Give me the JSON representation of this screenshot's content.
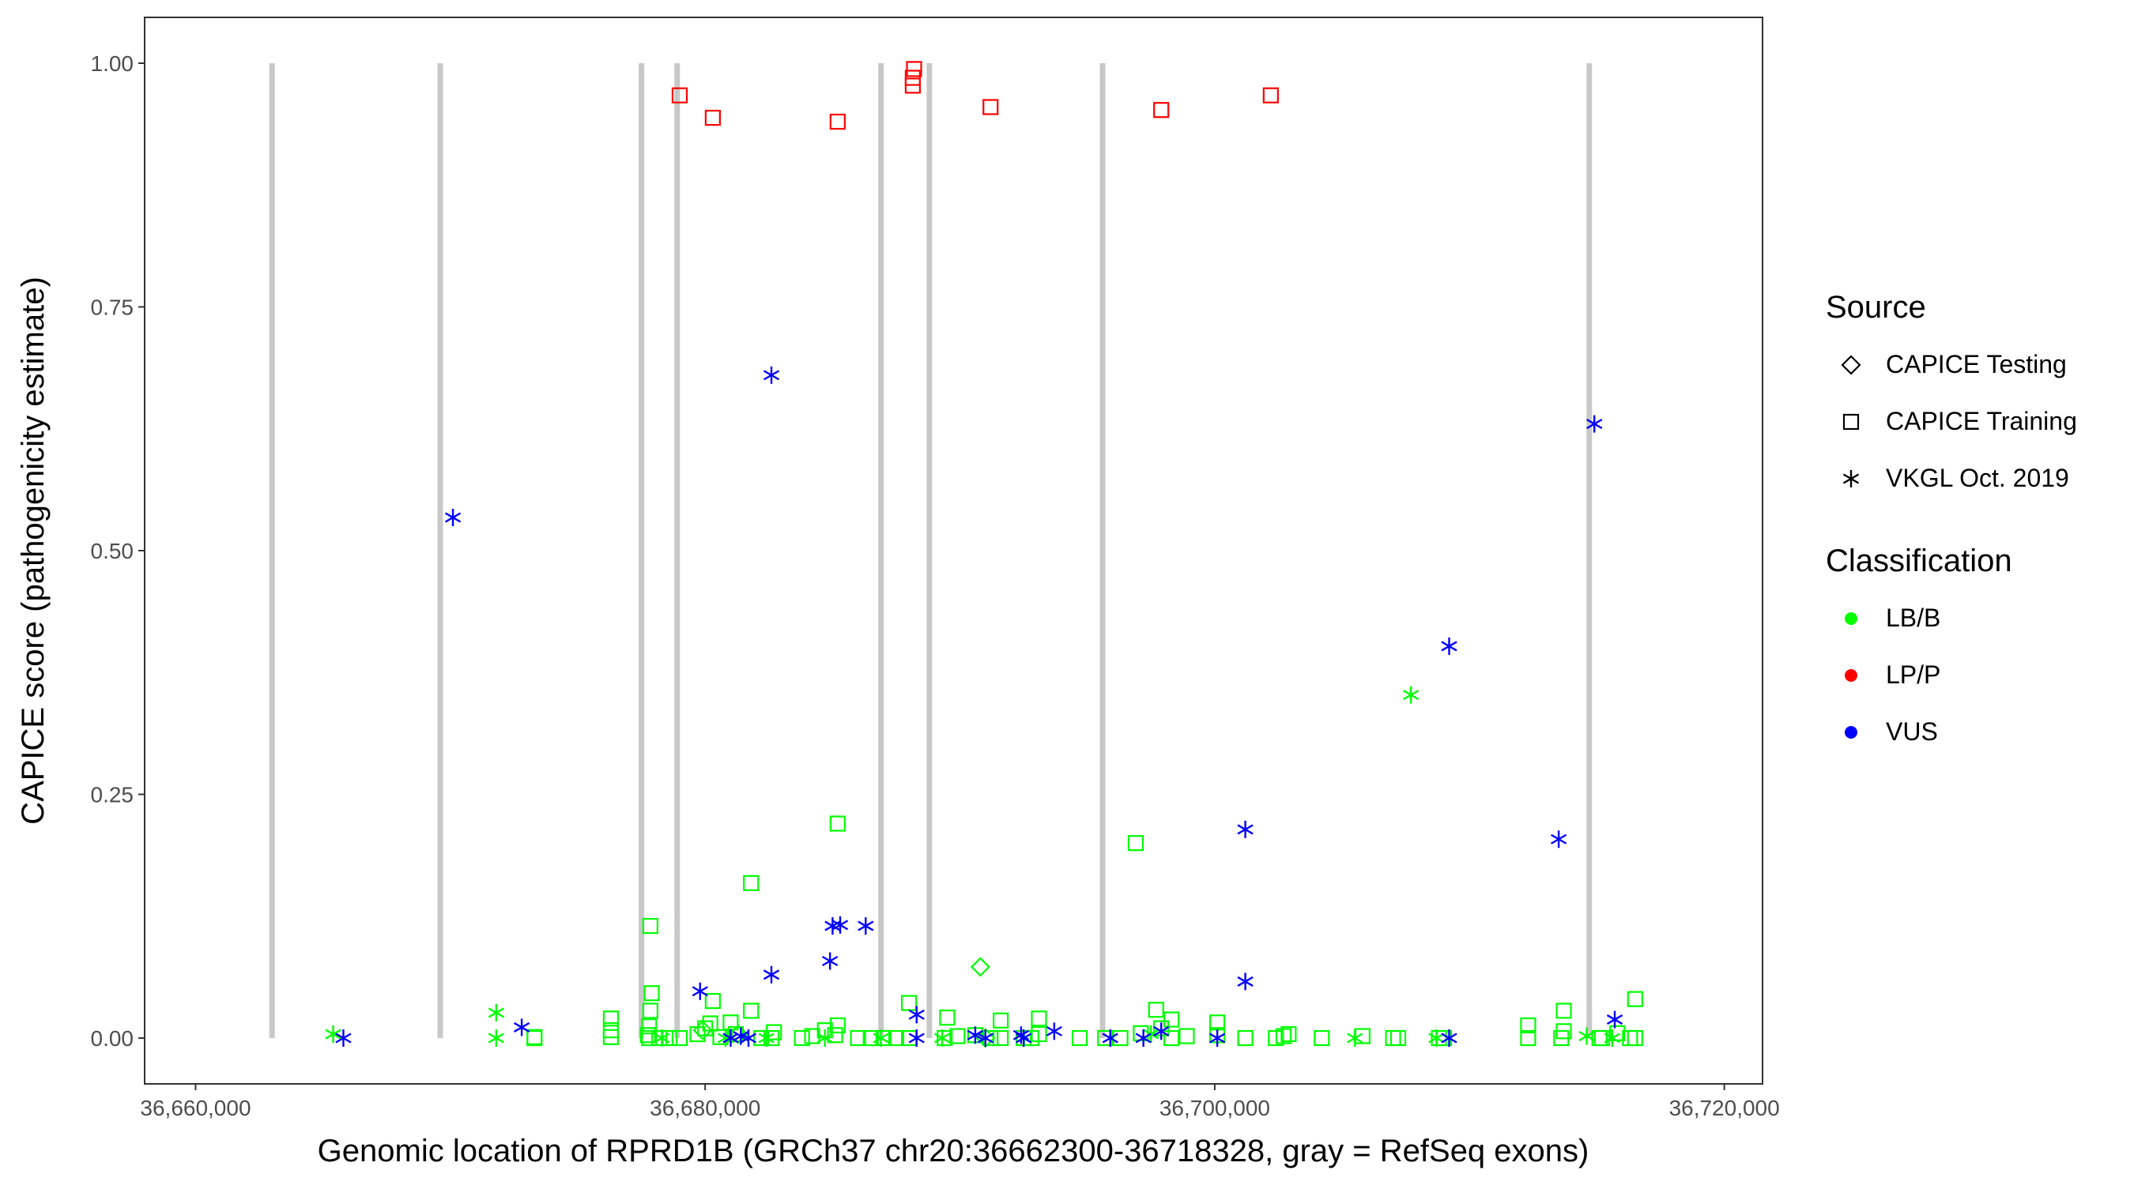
{
  "chart_data": {
    "type": "scatter",
    "title": "",
    "xlabel": "Genomic location of RPRD1B (GRCh37 chr20:36662300-36718328, gray = RefSeq exons)",
    "ylabel": "CAPICE score (pathogenicity estimate)",
    "xlim": [
      36658000,
      36721500
    ],
    "ylim": [
      -0.047,
      1.047
    ],
    "x_ticks": [
      36660000,
      36680000,
      36700000,
      36720000
    ],
    "x_tick_labels": [
      "36,660,000",
      "36,680,000",
      "36,700,000",
      "36,720,000"
    ],
    "y_ticks": [
      0,
      0.25,
      0.5,
      0.75,
      1
    ],
    "y_tick_labels": [
      "0.00",
      "0.25",
      "0.50",
      "0.75",
      "1.00"
    ],
    "grid": false,
    "exons": [
      36663000,
      36669600,
      36677500,
      36678900,
      36686900,
      36688800,
      36695600,
      36714700
    ],
    "legend_placement": "right",
    "legends": [
      {
        "title": "Source",
        "items": [
          {
            "label": "CAPICE Testing",
            "shape": "diamond"
          },
          {
            "label": "CAPICE Training",
            "shape": "square"
          },
          {
            "label": "VKGL Oct. 2019",
            "shape": "asterisk"
          }
        ]
      },
      {
        "title": "Classification",
        "items": [
          {
            "label": "LB/B",
            "color": "#00FF00"
          },
          {
            "label": "LP/P",
            "color": "#FF0000"
          },
          {
            "label": "VUS",
            "color": "#0000FF"
          }
        ]
      }
    ],
    "colors": {
      "LB/B": "#00FF00",
      "LP/P": "#FF0000",
      "VUS": "#0000FF",
      "exon": "#c8c8c8"
    },
    "series": [
      {
        "name": "CAPICE Training",
        "classification": "LP/P",
        "shape": "square",
        "points": [
          [
            36679000,
            0.967
          ],
          [
            36680300,
            0.944
          ],
          [
            36685200,
            0.94
          ],
          [
            36688200,
            0.994
          ],
          [
            36688150,
            0.985
          ],
          [
            36688150,
            0.977
          ],
          [
            36691200,
            0.955
          ],
          [
            36697900,
            0.952
          ],
          [
            36702200,
            0.967
          ]
        ]
      },
      {
        "name": "CAPICE Training",
        "classification": "LB/B",
        "shape": "square",
        "points": [
          [
            36673300,
            0.0
          ],
          [
            36673300,
            0.001
          ],
          [
            36676300,
            0.02
          ],
          [
            36676300,
            0.008
          ],
          [
            36676300,
            0.001
          ],
          [
            36677850,
            0.115
          ],
          [
            36677900,
            0.046
          ],
          [
            36677850,
            0.028
          ],
          [
            36677800,
            0.012
          ],
          [
            36677750,
            0.003
          ],
          [
            36677800,
            0.0
          ],
          [
            36678200,
            0.0
          ],
          [
            36678600,
            0.0
          ],
          [
            36679000,
            0.0
          ],
          [
            36679700,
            0.004
          ],
          [
            36680000,
            0.01
          ],
          [
            36680200,
            0.015
          ],
          [
            36680300,
            0.038
          ],
          [
            36680600,
            0.001
          ],
          [
            36681000,
            0.016
          ],
          [
            36681200,
            0.004
          ],
          [
            36681800,
            0.028
          ],
          [
            36681800,
            0.159
          ],
          [
            36682200,
            0.0
          ],
          [
            36682600,
            0.0
          ],
          [
            36682700,
            0.006
          ],
          [
            36683800,
            0.0
          ],
          [
            36684200,
            0.002
          ],
          [
            36684700,
            0.008
          ],
          [
            36685200,
            0.22
          ],
          [
            36685200,
            0.013
          ],
          [
            36685100,
            0.003
          ],
          [
            36686000,
            0.0
          ],
          [
            36686500,
            0.0
          ],
          [
            36687000,
            0.0
          ],
          [
            36687500,
            0.0
          ],
          [
            36688000,
            0.0
          ],
          [
            36688000,
            0.036
          ],
          [
            36689400,
            0.0
          ],
          [
            36689500,
            0.021
          ],
          [
            36689900,
            0.002
          ],
          [
            36690600,
            0.003
          ],
          [
            36691200,
            0.0
          ],
          [
            36691600,
            0.0
          ],
          [
            36691600,
            0.018
          ],
          [
            36692500,
            0.0
          ],
          [
            36692800,
            0.0
          ],
          [
            36693100,
            0.02
          ],
          [
            36693100,
            0.004
          ],
          [
            36694700,
            0.0
          ],
          [
            36695700,
            0.0
          ],
          [
            36696300,
            0.0
          ],
          [
            36696900,
            0.2
          ],
          [
            36697100,
            0.005
          ],
          [
            36697700,
            0.029
          ],
          [
            36697900,
            0.01
          ],
          [
            36698300,
            0.019
          ],
          [
            36698300,
            0.0
          ],
          [
            36698900,
            0.002
          ],
          [
            36700100,
            0.016
          ],
          [
            36700100,
            0.003
          ],
          [
            36701200,
            0.0
          ],
          [
            36702400,
            0.0
          ],
          [
            36702700,
            0.002
          ],
          [
            36702900,
            0.004
          ],
          [
            36704200,
            0.0
          ],
          [
            36705800,
            0.002
          ],
          [
            36707000,
            0.0
          ],
          [
            36707200,
            0.0
          ],
          [
            36708800,
            0.0
          ],
          [
            36709000,
            0.0
          ],
          [
            36712300,
            0.013
          ],
          [
            36712300,
            0.0
          ],
          [
            36713700,
            0.028
          ],
          [
            36713700,
            0.007
          ],
          [
            36713600,
            0.0
          ],
          [
            36715100,
            0.0
          ],
          [
            36715200,
            0.0
          ],
          [
            36715800,
            0.005
          ],
          [
            36716500,
            0.04
          ],
          [
            36716300,
            0.0
          ],
          [
            36716500,
            0.0
          ]
        ]
      },
      {
        "name": "CAPICE Testing",
        "classification": "LB/B",
        "shape": "diamond",
        "points": [
          [
            36679900,
            0.008
          ],
          [
            36681300,
            0.004
          ],
          [
            36690800,
            0.073
          ],
          [
            36691000,
            0.0
          ]
        ]
      },
      {
        "name": "VKGL Oct. 2019",
        "classification": "LB/B",
        "shape": "asterisk",
        "points": [
          [
            36665400,
            0.004
          ],
          [
            36671800,
            0.026
          ],
          [
            36671800,
            0.0
          ],
          [
            36678300,
            0.0
          ],
          [
            36680800,
            0.0
          ],
          [
            36682400,
            0.0
          ],
          [
            36684700,
            0.0
          ],
          [
            36686900,
            0.0
          ],
          [
            36689300,
            0.0
          ],
          [
            36697500,
            0.004
          ],
          [
            36705500,
            0.0
          ],
          [
            36707700,
            0.352
          ],
          [
            36708700,
            0.0
          ],
          [
            36714600,
            0.002
          ],
          [
            36715600,
            0.0
          ]
        ]
      },
      {
        "name": "VKGL Oct. 2019",
        "classification": "VUS",
        "shape": "asterisk",
        "points": [
          [
            36665800,
            0.0
          ],
          [
            36670100,
            0.534
          ],
          [
            36672800,
            0.011
          ],
          [
            36679800,
            0.048
          ],
          [
            36681000,
            0.0
          ],
          [
            36681400,
            0.002
          ],
          [
            36681700,
            0.0
          ],
          [
            36682600,
            0.68
          ],
          [
            36682600,
            0.065
          ],
          [
            36684900,
            0.079
          ],
          [
            36685000,
            0.115
          ],
          [
            36685300,
            0.116
          ],
          [
            36686300,
            0.115
          ],
          [
            36688300,
            0.024
          ],
          [
            36688300,
            0.0
          ],
          [
            36690600,
            0.003
          ],
          [
            36691000,
            0.0
          ],
          [
            36692400,
            0.003
          ],
          [
            36692500,
            0.0
          ],
          [
            36693700,
            0.007
          ],
          [
            36695900,
            0.0
          ],
          [
            36697200,
            0.0
          ],
          [
            36697900,
            0.007
          ],
          [
            36700100,
            0.0
          ],
          [
            36701200,
            0.214
          ],
          [
            36701200,
            0.058
          ],
          [
            36709200,
            0.402
          ],
          [
            36709200,
            0.0
          ],
          [
            36713500,
            0.204
          ],
          [
            36714900,
            0.63
          ],
          [
            36715700,
            0.019
          ]
        ]
      }
    ]
  }
}
